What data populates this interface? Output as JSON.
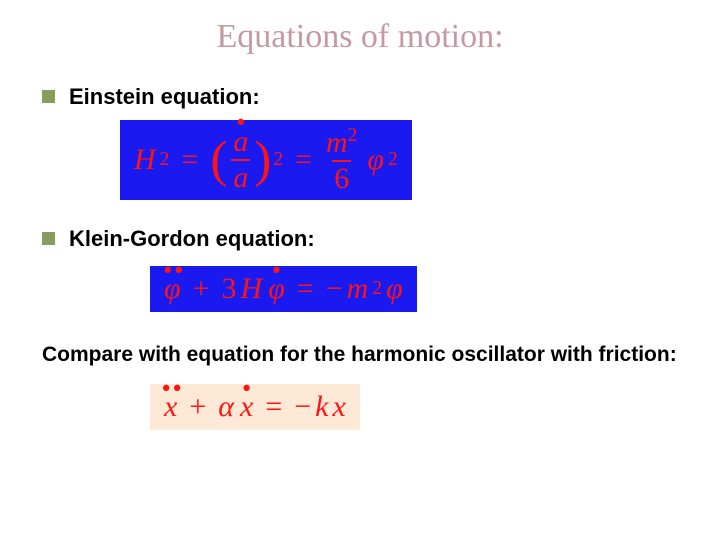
{
  "title": {
    "text": "Equations of motion:",
    "color": "#c49aa0",
    "fontsize": 34
  },
  "bullets": {
    "square_color": "#8a9b5b",
    "items": [
      {
        "label": "Einstein equation:"
      },
      {
        "label": "Klein-Gordon equation:"
      }
    ]
  },
  "compare_text": "Compare with equation for the harmonic oscillator with friction:",
  "equations": {
    "eq1": {
      "bg": "#1a1af0",
      "text_color": "#ff1414",
      "fontsize": 30,
      "lhs_var": "H",
      "lhs_pow": "2",
      "eq_sign": "=",
      "frac_num_var": "a",
      "frac_den_var": "a",
      "paren_pow": "2",
      "rhs_num_var": "m",
      "rhs_num_pow": "2",
      "rhs_den": "6",
      "rhs_var": "φ",
      "rhs_pow": "2"
    },
    "eq2": {
      "bg": "#1a1af0",
      "text_color": "#ff1414",
      "fontsize": 30,
      "term1_var": "φ",
      "plus": "+",
      "coef": "3",
      "H": "H",
      "term2_var": "φ",
      "eq_sign": "=",
      "minus": "−",
      "m": "m",
      "m_pow": "2",
      "rhs_var": "φ"
    },
    "eq3": {
      "bg": "#fee9d6",
      "text_color": "#ff1414",
      "fontsize": 30,
      "term1_var": "x",
      "plus": "+",
      "alpha": "α",
      "term2_var": "x",
      "eq_sign": "=",
      "minus": "−",
      "k": "k",
      "rhs_var": "x"
    }
  }
}
